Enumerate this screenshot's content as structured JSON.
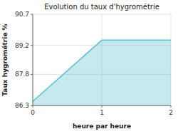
{
  "chart_data": {
    "type": "area",
    "title": "Evolution du taux d'hygrométrie",
    "xlabel": "heure par heure",
    "ylabel": "Taux hygrométrie %",
    "x": [
      0,
      1,
      2
    ],
    "values": [
      86.5,
      89.45,
      89.45
    ],
    "color": "#5bbfcf",
    "xlim": [
      0,
      2
    ],
    "ylim": [
      86.3,
      90.7
    ],
    "xticks": [
      0,
      1,
      2
    ],
    "yticks": [
      86.3,
      87.8,
      89.2,
      90.7
    ],
    "grid": true
  }
}
